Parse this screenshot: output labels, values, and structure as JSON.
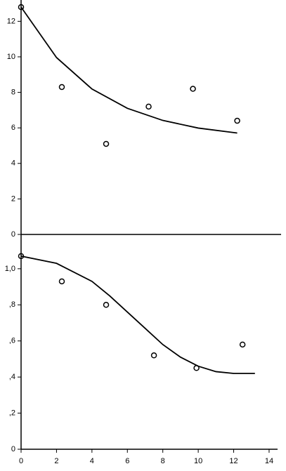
{
  "chart_data": [
    {
      "type": "scatter",
      "xlim": [
        0,
        14.2
      ],
      "ylim": [
        0,
        13.2
      ],
      "yticks": [
        0,
        2,
        4,
        6,
        8,
        10,
        12
      ],
      "series": [
        {
          "mode": "markers",
          "color": "#000000",
          "x": [
            0,
            2.3,
            4.8,
            7.2,
            9.7,
            12.2
          ],
          "values": [
            12.8,
            8.3,
            5.1,
            7.2,
            8.2,
            6.4
          ]
        },
        {
          "mode": "line",
          "color": "#000000",
          "x": [
            0,
            2,
            4,
            6,
            8,
            10,
            12.2
          ],
          "values": [
            12.8,
            9.96,
            8.19,
            7.1,
            6.42,
            5.99,
            5.71
          ]
        }
      ]
    },
    {
      "type": "scatter",
      "xlim": [
        0,
        14.2
      ],
      "ylim": [
        0,
        1.19
      ],
      "xticks": [
        0,
        2,
        4,
        6,
        8,
        10,
        12,
        14
      ],
      "yticks": [
        0,
        {
          "value": 0.2,
          "label": ",2"
        },
        {
          "value": 0.4,
          "label": ",4"
        },
        {
          "value": 0.6,
          "label": ",6"
        },
        {
          "value": 0.8,
          "label": ",8"
        },
        {
          "value": 1.0,
          "label": "1,0"
        }
      ],
      "series": [
        {
          "mode": "markers",
          "color": "#000000",
          "x": [
            0,
            2.3,
            4.8,
            7.5,
            9.9,
            12.5
          ],
          "values": [
            1.07,
            0.93,
            0.8,
            0.52,
            0.45,
            0.58
          ]
        },
        {
          "mode": "line",
          "color": "#000000",
          "x": [
            0,
            2,
            4,
            5,
            6,
            7,
            8,
            9,
            10,
            11,
            12,
            13.2
          ],
          "values": [
            1.07,
            1.03,
            0.93,
            0.85,
            0.76,
            0.67,
            0.58,
            0.51,
            0.46,
            0.43,
            0.42,
            0.42
          ]
        }
      ]
    }
  ]
}
